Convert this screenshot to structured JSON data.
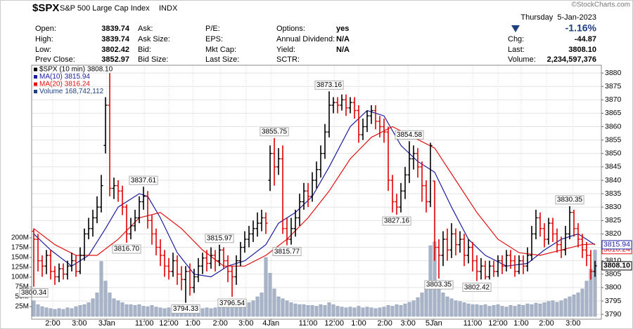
{
  "header": {
    "symbol": "$SPX",
    "name": "S&P 500 Large Cap Index",
    "exchange": "INDX",
    "date": "Thursday  5-Jan-2023",
    "watermark": "©StockCharts.com",
    "columns": [
      [
        {
          "label": "Open:",
          "value": "3839.74"
        },
        {
          "label": "High:",
          "value": "3839.74"
        },
        {
          "label": "Low:",
          "value": "3802.42"
        },
        {
          "label": "Prev Close:",
          "value": "3852.97"
        }
      ],
      [
        {
          "label": "Ask:"
        },
        {
          "label": "Ask Size:"
        },
        {
          "label": "Bid:"
        },
        {
          "label": "Bid Size:"
        }
      ],
      [
        {
          "label": "P/E:"
        },
        {
          "label": "EPS:"
        },
        {
          "label": "Mkt Cap:"
        },
        {
          "label": "Last Size:"
        }
      ],
      [
        {
          "label": "Options:",
          "value": "yes"
        },
        {
          "label": "Annual Dividend:",
          "value": "N/A"
        },
        {
          "label": "Yield:",
          "value": "N/A"
        },
        {
          "label": "SCTR:"
        }
      ]
    ],
    "change_pct": "-1.16%",
    "quote": [
      {
        "label": "Chg:",
        "value": "-44.87"
      },
      {
        "label": "Last:",
        "value": "3808.10"
      },
      {
        "label": "Volume:",
        "value": "2,234,597,376"
      }
    ]
  },
  "chart_data": {
    "type": "ohlc",
    "xlim": [
      -0.5,
      134.5
    ],
    "xticks": [
      {
        "value": 4.5,
        "label": "2:00"
      },
      {
        "value": 10.8,
        "label": "3:00"
      },
      {
        "value": 17.3,
        "label": "3Jan"
      },
      {
        "value": 26.2,
        "label": "11:00"
      },
      {
        "value": 32,
        "label": "12:00"
      },
      {
        "value": 37.7,
        "label": "1:00"
      },
      {
        "value": 44.2,
        "label": "2:00"
      },
      {
        "value": 50.3,
        "label": "3:00"
      },
      {
        "value": 56.2,
        "label": "4Jan"
      },
      {
        "value": 65,
        "label": "11:00"
      },
      {
        "value": 71.2,
        "label": "12:00"
      },
      {
        "value": 77,
        "label": "1:00"
      },
      {
        "value": 83.2,
        "label": "2:00"
      },
      {
        "value": 88.7,
        "label": "3:00"
      },
      {
        "value": 94.8,
        "label": "5Jan"
      },
      {
        "value": 104,
        "label": "11:00"
      },
      {
        "value": 110,
        "label": "12:00"
      },
      {
        "value": 115.5,
        "label": "1:00"
      },
      {
        "value": 121.5,
        "label": "2:00"
      },
      {
        "value": 127.8,
        "label": "3:00"
      }
    ],
    "ylim": [
      3788.2,
      3882.9
    ],
    "yticks": [
      3790,
      3795,
      3800,
      3805,
      3810,
      3815,
      3820,
      3825,
      3830,
      3835,
      3840,
      3845,
      3850,
      3855,
      3860,
      3865,
      3870,
      3875,
      3880
    ],
    "y2lim": [
      -7.1,
      639.3
    ],
    "y2ticks": [
      {
        "value": 25,
        "label": "25M"
      },
      {
        "value": 50,
        "label": "50M"
      },
      {
        "value": 75,
        "label": "75M"
      },
      {
        "value": 100,
        "label": "100M"
      },
      {
        "value": 125,
        "label": "125M"
      },
      {
        "value": 150,
        "label": "150M"
      },
      {
        "value": 175,
        "label": "175M"
      },
      {
        "value": 200,
        "label": "200M"
      }
    ],
    "grid": true,
    "price": {
      "name": "$SPX (10 min)",
      "last": "3808.10",
      "up_color": "#000000",
      "down_color": "#e00000",
      "open": [
        3821,
        3818,
        3810,
        3808,
        3812,
        3806,
        3804,
        3807,
        3805,
        3808,
        3810,
        3806,
        3812,
        3820,
        3822,
        3826,
        3830,
        3853,
        3868,
        3837,
        3838,
        3836,
        3830,
        3820,
        3823,
        3826,
        3832,
        3834,
        3825,
        3820,
        3815,
        3812,
        3808,
        3806,
        3810,
        3805,
        3803,
        3806,
        3800,
        3804,
        3808,
        3811,
        3809,
        3812,
        3810,
        3814,
        3810,
        3806,
        3804,
        3810,
        3815,
        3818,
        3820,
        3822,
        3824,
        3826,
        3840,
        3850,
        3845,
        3848,
        3822,
        3818,
        3822,
        3826,
        3832,
        3836,
        3834,
        3840,
        3844,
        3850,
        3858,
        3868,
        3869,
        3868,
        3870,
        3867,
        3869,
        3866,
        3857,
        3860,
        3864,
        3866,
        3862,
        3860,
        3858,
        3840,
        3832,
        3830,
        3836,
        3842,
        3848,
        3850,
        3845,
        3838,
        3832,
        3839.74,
        3815,
        3812,
        3818,
        3814,
        3820,
        3816,
        3818,
        3812,
        3815,
        3810,
        3806,
        3808,
        3804,
        3808,
        3806,
        3810,
        3808,
        3812,
        3810,
        3806,
        3810,
        3808,
        3812,
        3820,
        3826,
        3822,
        3818,
        3824,
        3820,
        3816,
        3814,
        3820,
        3828,
        3822,
        3818,
        3814,
        3812,
        3806
      ],
      "high": [
        3822,
        3820,
        3812,
        3814,
        3814,
        3808,
        3809,
        3809,
        3810,
        3813,
        3812,
        3815,
        3822,
        3826,
        3829,
        3834,
        3842,
        3871,
        3880,
        3841,
        3840,
        3838,
        3831,
        3826,
        3829,
        3834,
        3837.61,
        3836,
        3827,
        3822,
        3818,
        3814,
        3811,
        3813,
        3812,
        3808,
        3808,
        3809,
        3807,
        3811,
        3813,
        3814,
        3815,
        3814,
        3815.97,
        3815,
        3812,
        3808,
        3812,
        3817,
        3821,
        3823,
        3825,
        3828,
        3829,
        3828,
        3853,
        3855.75,
        3852,
        3853,
        3826,
        3826,
        3829,
        3835,
        3839,
        3839,
        3843,
        3847,
        3853,
        3861,
        3873.16,
        3871,
        3871,
        3872,
        3872,
        3871,
        3871,
        3868,
        3863,
        3866,
        3868,
        3868,
        3864,
        3863,
        3860,
        3842,
        3835,
        3839,
        3845,
        3854.58,
        3853,
        3852,
        3847,
        3840,
        3854,
        3839.74,
        3818,
        3821,
        3822,
        3824,
        3822,
        3821,
        3820,
        3818,
        3817,
        3812,
        3811,
        3810,
        3810,
        3810,
        3812,
        3812,
        3814,
        3814,
        3812,
        3812,
        3812,
        3815,
        3823,
        3829,
        3828,
        3824,
        3826,
        3826,
        3822,
        3819,
        3823,
        3830.35,
        3829,
        3824,
        3820,
        3817,
        3814,
        3810
      ],
      "low": [
        3800.34,
        3806,
        3804,
        3805,
        3803,
        3801,
        3802,
        3803,
        3803,
        3806,
        3804,
        3805,
        3810,
        3818,
        3819,
        3824,
        3828,
        3850,
        3834,
        3833,
        3832,
        3827,
        3816.7,
        3818,
        3821,
        3824,
        3829,
        3822,
        3816,
        3812,
        3808,
        3804,
        3803,
        3804,
        3801,
        3799,
        3794.33,
        3797,
        3798,
        3802,
        3805,
        3806,
        3807,
        3806,
        3808,
        3807,
        3802,
        3796.54,
        3801,
        3808,
        3813,
        3815,
        3817,
        3819,
        3821,
        3820,
        3836,
        3838,
        3842,
        3820,
        3815.77,
        3816,
        3819,
        3823,
        3829,
        3830,
        3832,
        3837,
        3841,
        3848,
        3856,
        3865,
        3865,
        3866,
        3864,
        3865,
        3863,
        3854,
        3855,
        3858,
        3861,
        3859,
        3856,
        3854,
        3836,
        3828,
        3827.16,
        3828,
        3833,
        3839,
        3844,
        3841,
        3832,
        3828,
        3830,
        3810,
        3803.35,
        3808,
        3810,
        3811,
        3812,
        3813,
        3808,
        3809,
        3806,
        3802.42,
        3803,
        3803,
        3803,
        3804,
        3804,
        3805,
        3806,
        3807,
        3804,
        3805,
        3805,
        3806,
        3810,
        3818,
        3819,
        3815,
        3816,
        3817,
        3813,
        3811,
        3812,
        3818,
        3819,
        3815,
        3811,
        3808,
        3803,
        3804
      ],
      "close": [
        3818,
        3810,
        3808,
        3812,
        3806,
        3804,
        3807,
        3805,
        3808,
        3810,
        3806,
        3812,
        3820,
        3822,
        3826,
        3830,
        3838,
        3868,
        3837,
        3838,
        3836,
        3830,
        3820,
        3823,
        3826,
        3832,
        3834,
        3825,
        3820,
        3815,
        3812,
        3808,
        3806,
        3810,
        3805,
        3803,
        3806,
        3800,
        3804,
        3808,
        3811,
        3809,
        3812,
        3810,
        3814,
        3810,
        3806,
        3804,
        3810,
        3815,
        3818,
        3820,
        3822,
        3824,
        3826,
        3824,
        3850,
        3845,
        3848,
        3822,
        3818,
        3822,
        3826,
        3832,
        3836,
        3834,
        3840,
        3844,
        3850,
        3858,
        3868,
        3869,
        3868,
        3870,
        3867,
        3869,
        3866,
        3857,
        3860,
        3864,
        3866,
        3862,
        3860,
        3858,
        3840,
        3832,
        3830,
        3836,
        3842,
        3848,
        3850,
        3845,
        3838,
        3832,
        3852.97,
        3815,
        3812,
        3818,
        3814,
        3820,
        3816,
        3818,
        3812,
        3815,
        3810,
        3806,
        3808,
        3804,
        3808,
        3806,
        3810,
        3808,
        3812,
        3810,
        3806,
        3810,
        3808,
        3812,
        3820,
        3826,
        3822,
        3818,
        3824,
        3820,
        3816,
        3814,
        3820,
        3828,
        3822,
        3818,
        3814,
        3812,
        3806,
        3808.1
      ]
    },
    "overlays": [
      {
        "name": "MA(10)",
        "last": "3815.94",
        "color": "#1c1c9e",
        "x": [
          0,
          4,
          9,
          13,
          17,
          20,
          25,
          27,
          30,
          34,
          38,
          42,
          46,
          50,
          55,
          58,
          62,
          66,
          70,
          75,
          79,
          83,
          87,
          91,
          95,
          99,
          103,
          107,
          112,
          117,
          121,
          125,
          129,
          133
        ],
        "values": [
          3820,
          3814,
          3808,
          3812,
          3822,
          3830,
          3835,
          3834,
          3826,
          3813,
          3805,
          3804,
          3808,
          3810,
          3816,
          3824,
          3828,
          3834,
          3845,
          3860,
          3866,
          3864,
          3853,
          3847,
          3843,
          3830,
          3818,
          3812,
          3808,
          3809,
          3814,
          3818,
          3820,
          3815.94
        ]
      },
      {
        "name": "MA(20)",
        "last": "3816.24",
        "color": "#e01010",
        "x": [
          0,
          5,
          10,
          15,
          20,
          25,
          30,
          35,
          40,
          45,
          50,
          55,
          60,
          65,
          70,
          75,
          80,
          85,
          90,
          95,
          100,
          105,
          110,
          115,
          120,
          125,
          130,
          133
        ],
        "values": [
          3822,
          3816,
          3812,
          3812,
          3818,
          3826,
          3828,
          3822,
          3814,
          3808,
          3808,
          3812,
          3818,
          3826,
          3836,
          3848,
          3856,
          3860,
          3856,
          3852,
          3840,
          3828,
          3818,
          3813,
          3812,
          3814,
          3816,
          3816.24
        ]
      }
    ],
    "volume": {
      "name": "Volume",
      "last": "168,742,112",
      "color": "#a7b4c8",
      "axis": "y2",
      "values": [
        40,
        30,
        25,
        22,
        20,
        18,
        20,
        18,
        22,
        20,
        25,
        28,
        30,
        35,
        45,
        60,
        140,
        90,
        60,
        45,
        40,
        35,
        30,
        30,
        28,
        30,
        26,
        25,
        28,
        24,
        22,
        20,
        22,
        20,
        18,
        20,
        22,
        18,
        20,
        18,
        20,
        22,
        20,
        22,
        24,
        22,
        26,
        25,
        28,
        30,
        32,
        35,
        40,
        50,
        60,
        150,
        110,
        70,
        50,
        45,
        40,
        35,
        32,
        30,
        30,
        28,
        28,
        26,
        30,
        28,
        35,
        30,
        26,
        24,
        22,
        24,
        22,
        26,
        22,
        24,
        22,
        20,
        22,
        24,
        28,
        26,
        30,
        28,
        32,
        36,
        40,
        48,
        60,
        90,
        180,
        190,
        80,
        60,
        50,
        45,
        40,
        38,
        35,
        32,
        30,
        30,
        28,
        30,
        26,
        28,
        30,
        26,
        24,
        28,
        26,
        30,
        28,
        32,
        30,
        34,
        32,
        35,
        38,
        40,
        36,
        40,
        45,
        50,
        55,
        60,
        70,
        90,
        120,
        168.742112
      ]
    },
    "annotations": [
      {
        "x": 0,
        "value": 3800.34
      },
      {
        "x": 22,
        "value": 3816.7,
        "label": "3816.70"
      },
      {
        "x": 26,
        "value": 3837.61
      },
      {
        "x": 36,
        "value": 3794.33
      },
      {
        "x": 44,
        "value": 3815.97
      },
      {
        "x": 47,
        "value": 3796.54
      },
      {
        "x": 57,
        "value": 3855.75
      },
      {
        "x": 60,
        "value": 3815.77
      },
      {
        "x": 70,
        "value": 3873.16
      },
      {
        "x": 86,
        "value": 3827.16
      },
      {
        "x": 89,
        "value": 3854.58
      },
      {
        "x": 96,
        "value": 3803.35
      },
      {
        "x": 105,
        "value": 3802.42
      },
      {
        "x": 127,
        "value": 3830.35
      }
    ]
  }
}
